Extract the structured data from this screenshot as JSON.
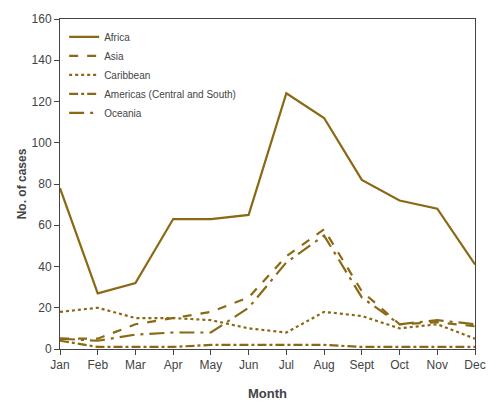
{
  "chart_data": {
    "type": "line",
    "x_label": "Month",
    "y_label": "No. of cases",
    "categories": [
      "Jan",
      "Feb",
      "Mar",
      "Apr",
      "May",
      "Jun",
      "Jul",
      "Aug",
      "Sept",
      "Oct",
      "Nov",
      "Dec"
    ],
    "series": [
      {
        "name": "Africa",
        "color": "#8B6914",
        "line_style": "solid",
        "values": [
          78,
          27,
          32,
          63,
          63,
          65,
          124,
          112,
          82,
          72,
          68,
          41
        ]
      },
      {
        "name": "Asia",
        "color": "#8B6914",
        "line_style": "dash",
        "values": [
          5,
          5,
          12,
          15,
          18,
          25,
          45,
          58,
          28,
          12,
          13,
          11
        ]
      },
      {
        "name": "Caribbean",
        "color": "#8B6914",
        "line_style": "dot",
        "values": [
          18,
          20,
          15,
          15,
          14,
          10,
          8,
          18,
          16,
          10,
          12,
          5
        ]
      },
      {
        "name": "Americas (Central and South)",
        "color": "#8B6914",
        "line_style": "dashdot",
        "values": [
          4,
          1,
          1,
          1,
          2,
          2,
          2,
          2,
          1,
          1,
          1,
          1
        ]
      },
      {
        "name": "Oceania",
        "color": "#8B6914",
        "line_style": "longdashdot",
        "values": [
          5,
          4,
          7,
          8,
          8,
          20,
          42,
          55,
          25,
          12,
          14,
          12
        ]
      }
    ],
    "ylim": [
      0,
      160
    ],
    "yticks": [
      0,
      20,
      40,
      60,
      80,
      100,
      120,
      140,
      160
    ],
    "grid": false,
    "legend": "upper left"
  }
}
